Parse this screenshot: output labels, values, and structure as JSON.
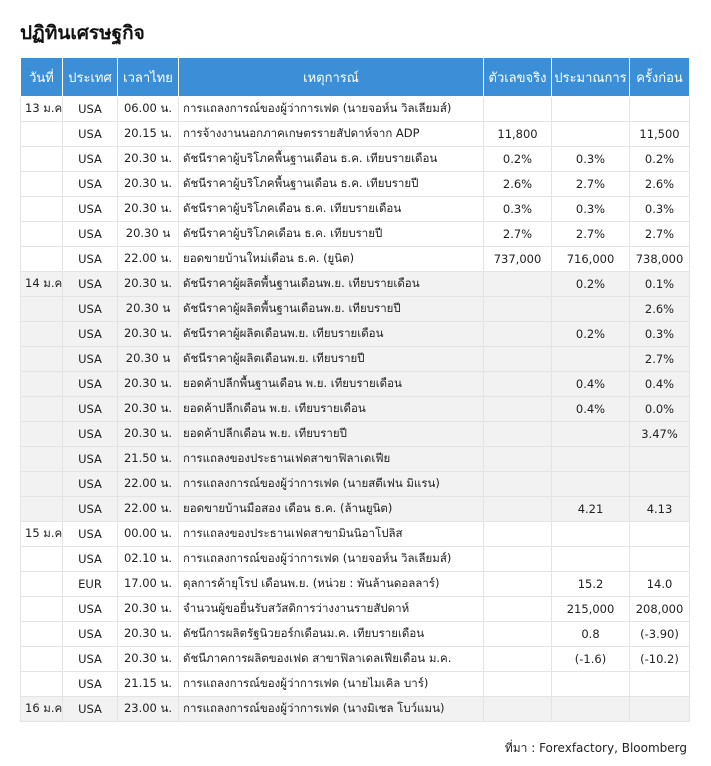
{
  "title": "ปฏิทินเศรษฐกิจ",
  "table": {
    "header": [
      "วันที่",
      "ประเทศ",
      "เวลาไทย",
      "เหตุการณ์",
      "ตัวเลขจริง",
      "ประมาณการ",
      "ครั้งก่อน"
    ],
    "rows": [
      [
        "13 ม.ค.",
        "USA",
        "06.00 น.",
        "การแถลงการณ์ของผู้ว่าการเฟด (นายจอห์น วิลเลียมส์)",
        null,
        null,
        null
      ],
      [
        null,
        "USA",
        "20.15 น.",
        "การจ้างงานนอกภาคเกษตรรายสัปดาห์จาก ADP",
        "11,800",
        null,
        "11,500"
      ],
      [
        null,
        "USA",
        "20.30 น.",
        "ดัชนีราคาผู้บริโภคพื้นฐานเดือน ธ.ค. เทียบรายเดือน",
        "0.2%",
        "0.3%",
        "0.2%"
      ],
      [
        null,
        "USA",
        "20.30 น.",
        "ดัชนีราคาผู้บริโภคพื้นฐานเดือน ธ.ค. เทียบรายปี",
        "2.6%",
        "2.7%",
        "2.6%"
      ],
      [
        null,
        "USA",
        "20.30 น.",
        "ดัชนีราคาผู้บริโภคเดือน ธ.ค. เทียบรายเดือน",
        "0.3%",
        "0.3%",
        "0.3%"
      ],
      [
        null,
        "USA",
        "20.30 น",
        "ดัชนีราคาผู้บริโภคเดือน ธ.ค. เทียบรายปี",
        "2.7%",
        "2.7%",
        "2.7%"
      ],
      [
        null,
        "USA",
        "22.00 น.",
        "ยอดขายบ้านใหม่เดือน ธ.ค. (ยูนิต)",
        "737,000",
        "716,000",
        "738,000"
      ],
      [
        "14 ม.ค.",
        "USA",
        "20.30 น.",
        "ดัชนีราคาผู้ผลิตพื้นฐานเดือนพ.ย. เทียบรายเดือน",
        null,
        "0.2%",
        "0.1%"
      ],
      [
        null,
        "USA",
        "20.30 น",
        "ดัชนีราคาผู้ผลิตพื้นฐานเดือนพ.ย. เทียบรายปี",
        null,
        null,
        "2.6%"
      ],
      [
        null,
        "USA",
        "20.30 น.",
        "ดัชนีราคาผู้ผลิตเดือนพ.ย. เทียบรายเดือน",
        null,
        "0.2%",
        "0.3%"
      ],
      [
        null,
        "USA",
        "20.30 น",
        "ดัชนีราคาผู้ผลิตเดือนพ.ย. เทียบรายปี",
        null,
        null,
        "2.7%"
      ],
      [
        null,
        "USA",
        "20.30 น.",
        "ยอดค้าปลีกพื้นฐานเดือน พ.ย. เทียบรายเดือน",
        null,
        "0.4%",
        "0.4%"
      ],
      [
        null,
        "USA",
        "20.30 น.",
        "ยอดค้าปลีกเดือน พ.ย. เทียบรายเดือน",
        null,
        "0.4%",
        "0.0%"
      ],
      [
        null,
        "USA",
        "20.30 น.",
        "ยอดค้าปลีกเดือน พ.ย. เทียบรายปี",
        null,
        null,
        "3.47%"
      ],
      [
        null,
        "USA",
        "21.50 น.",
        "การแถลงของประธานเฟดสาขาฟิลาเดเฟีย",
        null,
        null,
        null
      ],
      [
        null,
        "USA",
        "22.00 น.",
        "การแถลงการณ์ของผู้ว่าการเฟด (นายสตีเฟน มิแรน)",
        null,
        null,
        null
      ],
      [
        null,
        "USA",
        "22.00 น.",
        "ยอดขายบ้านมือสอง เดือน ธ.ค. (ล้านยูนิต)",
        null,
        "4.21",
        "4.13"
      ],
      [
        "15 ม.ค.",
        "USA",
        "00.00 น.",
        "การแถลงของประธานเฟดสาขามินนิอาโปลิส",
        null,
        null,
        null
      ],
      [
        null,
        "USA",
        "02.10 น.",
        "การแถลงการณ์ของผู้ว่าการเฟด (นายจอห์น วิลเลียมส์)",
        null,
        null,
        null
      ],
      [
        null,
        "EUR",
        "17.00 น.",
        "ดุลการค้ายุโรป เดือนพ.ย. (หน่วย : พันล้านดอลลาร์)",
        null,
        "15.2",
        "14.0"
      ],
      [
        null,
        "USA",
        "20.30 น.",
        "จำนวนผู้ขอยื่นรับสวัสดิการว่างงานรายสัปดาห์",
        null,
        "215,000",
        "208,000"
      ],
      [
        null,
        "USA",
        "20.30 น.",
        "ดัชนีการผลิตรัฐนิวยอร์กเดือนม.ค. เทียบรายเดือน",
        null,
        "0.8",
        "(-3.90)"
      ],
      [
        null,
        "USA",
        "20.30 น.",
        "ดัชนีภาคการผลิตของเฟด สาขาฟิลาเดลเฟียเดือน ม.ค.",
        null,
        "(-1.6)",
        "(-10.2)"
      ],
      [
        null,
        "USA",
        "21.15 น.",
        "การแถลงการณ์ของผู้ว่าการเฟด (นายไมเคิล บาร์)",
        null,
        null,
        null
      ],
      [
        "16 ม.ค.",
        "USA",
        "23.00 น.",
        "การแถลงการณ์ของผู้ว่าการเฟด (นางมิเชล โบว์แมน)",
        null,
        null,
        null
      ]
    ]
  },
  "source": "ที่มา : Forexfactory, Bloomberg"
}
